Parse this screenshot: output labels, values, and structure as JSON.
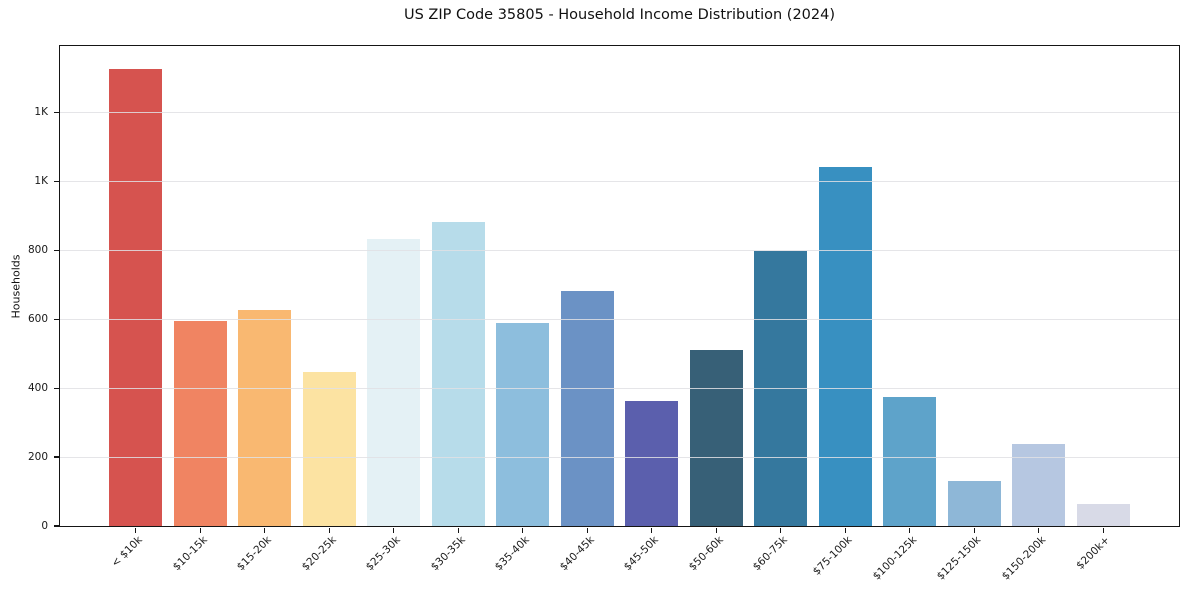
{
  "figure": {
    "title": "US ZIP Code 35805 - Household Income Distribution (2024)",
    "y_axis_label": "Households"
  },
  "chart_data": {
    "type": "bar",
    "title": "US ZIP Code 35805 - Household Income Distribution (2024)",
    "xlabel": "",
    "ylabel": "Households",
    "categories": [
      "< $10k",
      "$10-15k",
      "$15-20k",
      "$20-25k",
      "$25-30k",
      "$30-35k",
      "$35-40k",
      "$40-45k",
      "$45-50k",
      "$50-60k",
      "$60-75k",
      "$75-100k",
      "$100-125k",
      "$125-150k",
      "$150-200k",
      "$200k+"
    ],
    "values": [
      1325,
      595,
      628,
      447,
      833,
      882,
      590,
      683,
      363,
      510,
      798,
      1043,
      375,
      132,
      239,
      65
    ],
    "bar_colors": [
      "#d6534f",
      "#f08462",
      "#f9b871",
      "#fce3a2",
      "#e4f1f5",
      "#b7dcea",
      "#8dbedd",
      "#6b92c5",
      "#5b5fad",
      "#376077",
      "#35789e",
      "#3890c1",
      "#5ea3ca",
      "#8eb7d7",
      "#b6c7e1",
      "#d8dae7"
    ],
    "ylim": [
      0,
      1391
    ],
    "yticks": {
      "values": [
        0,
        200,
        400,
        600,
        800,
        1000,
        1200
      ],
      "labels": [
        "0",
        "200",
        "400",
        "600",
        "800",
        "1K",
        "1K"
      ]
    },
    "grid": "horizontal-on-top",
    "legend": "none",
    "x_tick_rotation_deg": 45
  }
}
